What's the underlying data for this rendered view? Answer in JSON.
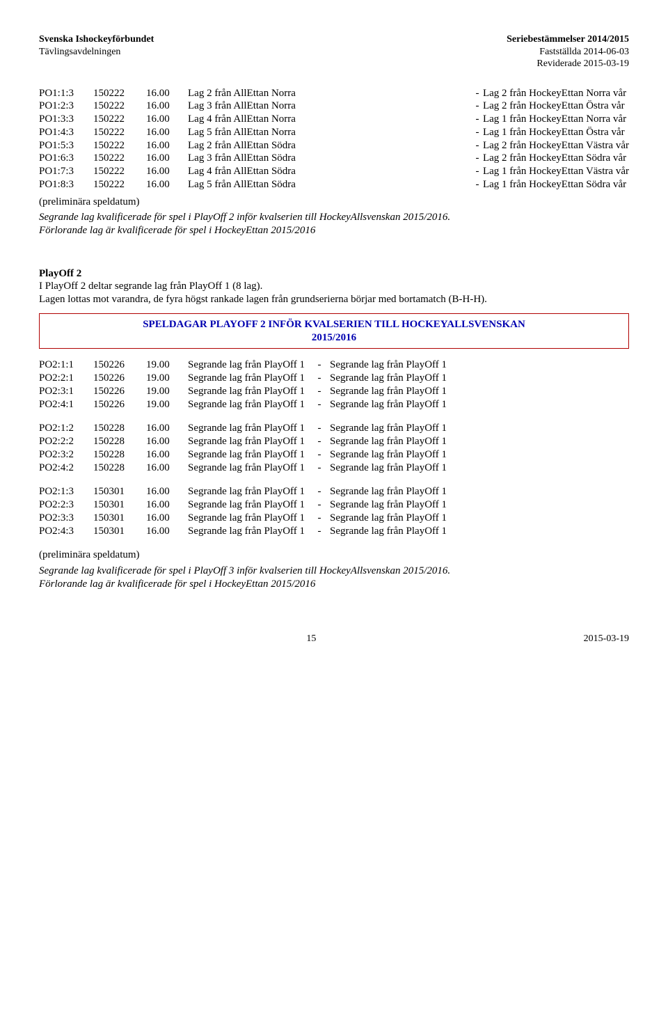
{
  "header": {
    "left_line1": "Svenska Ishockeyförbundet",
    "left_line2": "Tävlingsavdelningen",
    "right_line1": "Seriebestämmelser 2014/2015",
    "right_line2": "Fastställda 2014-06-03",
    "right_line3": "Reviderade 2015-03-19"
  },
  "block1": {
    "rows": [
      {
        "c1": "PO1:1:3",
        "c2": "150222",
        "c3": "16.00",
        "c4": "Lag 2 från AllEttan Norra",
        "r": "Lag 2 från HockeyEttan Norra vår"
      },
      {
        "c1": "PO1:2:3",
        "c2": "150222",
        "c3": "16.00",
        "c4": "Lag 3 från AllEttan Norra",
        "r": "Lag 2 från HockeyEttan Östra vår"
      },
      {
        "c1": "PO1:3:3",
        "c2": "150222",
        "c3": "16.00",
        "c4": "Lag 4 från AllEttan Norra",
        "r": "Lag 1 från HockeyEttan Norra vår"
      },
      {
        "c1": "PO1:4:3",
        "c2": "150222",
        "c3": "16.00",
        "c4": "Lag 5 från AllEttan Norra",
        "r": "Lag 1 från HockeyEttan Östra vår"
      },
      {
        "c1": "PO1:5:3",
        "c2": "150222",
        "c3": "16.00",
        "c4": "Lag 2 från AllEttan Södra",
        "r": "Lag 2 från HockeyEttan Västra vår"
      },
      {
        "c1": "PO1:6:3",
        "c2": "150222",
        "c3": "16.00",
        "c4": "Lag 3 från AllEttan Södra",
        "r": "Lag 2 från HockeyEttan Södra vår"
      },
      {
        "c1": "PO1:7:3",
        "c2": "150222",
        "c3": "16.00",
        "c4": "Lag 4 från AllEttan Södra",
        "r": "Lag 1 från HockeyEttan Västra vår"
      },
      {
        "c1": "PO1:8:3",
        "c2": "150222",
        "c3": "16.00",
        "c4": "Lag 5 från AllEttan Södra",
        "r": "Lag 1 från HockeyEttan Södra vår"
      }
    ],
    "note": "(preliminära speldatum)"
  },
  "para1": {
    "line1": "Segrande lag kvalificerade för spel i PlayOff 2 inför kvalserien till HockeyAllsvenskan 2015/2016.",
    "line2": "Förlorande lag är kvalificerade för spel i HockeyEttan 2015/2016"
  },
  "playoff2": {
    "title": "PlayOff 2",
    "text": "I PlayOff 2 deltar segrande lag från PlayOff 1 (8 lag).\nLagen lottas mot varandra, de fyra högst rankade lagen från grundserierna börjar med bortamatch (B-H-H)."
  },
  "box": {
    "line1": "SPELDAGAR PLAYOFF 2 INFÖR KVALSERIEN TILL HOCKEYALLSVENSKAN",
    "line2": "2015/2016"
  },
  "block2": {
    "groups": [
      [
        {
          "c1": "PO2:1:1",
          "c2": "150226",
          "c3": "19.00",
          "c4": "Segrande lag från PlayOff 1",
          "c5": "Segrande lag från PlayOff 1"
        },
        {
          "c1": "PO2:2:1",
          "c2": "150226",
          "c3": "19.00",
          "c4": "Segrande lag från PlayOff 1",
          "c5": "Segrande lag från PlayOff 1"
        },
        {
          "c1": "PO2:3:1",
          "c2": "150226",
          "c3": "19.00",
          "c4": "Segrande lag från PlayOff 1",
          "c5": "Segrande lag från PlayOff 1"
        },
        {
          "c1": "PO2:4:1",
          "c2": "150226",
          "c3": "19.00",
          "c4": "Segrande lag från PlayOff 1",
          "c5": "Segrande lag från PlayOff 1"
        }
      ],
      [
        {
          "c1": "PO2:1:2",
          "c2": "150228",
          "c3": "16.00",
          "c4": "Segrande lag från PlayOff 1",
          "c5": "Segrande lag från PlayOff 1"
        },
        {
          "c1": "PO2:2:2",
          "c2": "150228",
          "c3": "16.00",
          "c4": "Segrande lag från PlayOff 1",
          "c5": "Segrande lag från PlayOff 1"
        },
        {
          "c1": "PO2:3:2",
          "c2": "150228",
          "c3": "16.00",
          "c4": "Segrande lag från PlayOff 1",
          "c5": "Segrande lag från PlayOff 1"
        },
        {
          "c1": "PO2:4:2",
          "c2": "150228",
          "c3": "16.00",
          "c4": "Segrande lag från PlayOff 1",
          "c5": "Segrande lag från PlayOff 1"
        }
      ],
      [
        {
          "c1": "PO2:1:3",
          "c2": "150301",
          "c3": "16.00",
          "c4": "Segrande lag från PlayOff 1",
          "c5": "Segrande lag från PlayOff 1"
        },
        {
          "c1": "PO2:2:3",
          "c2": "150301",
          "c3": "16.00",
          "c4": "Segrande lag från PlayOff 1",
          "c5": "Segrande lag från PlayOff 1"
        },
        {
          "c1": "PO2:3:3",
          "c2": "150301",
          "c3": "16.00",
          "c4": "Segrande lag från PlayOff 1",
          "c5": "Segrande lag från PlayOff 1"
        },
        {
          "c1": "PO2:4:3",
          "c2": "150301",
          "c3": "16.00",
          "c4": "Segrande lag från PlayOff 1",
          "c5": "Segrande lag från PlayOff 1"
        }
      ]
    ],
    "note": "(preliminära speldatum)"
  },
  "para2": {
    "line1": "Segrande lag kvalificerade för spel i PlayOff 3 inför kvalserien till HockeyAllsvenskan 2015/2016.",
    "line2": "Förlorande lag är kvalificerade för spel i HockeyEttan 2015/2016"
  },
  "footer": {
    "page": "15",
    "date": "2015-03-19"
  }
}
